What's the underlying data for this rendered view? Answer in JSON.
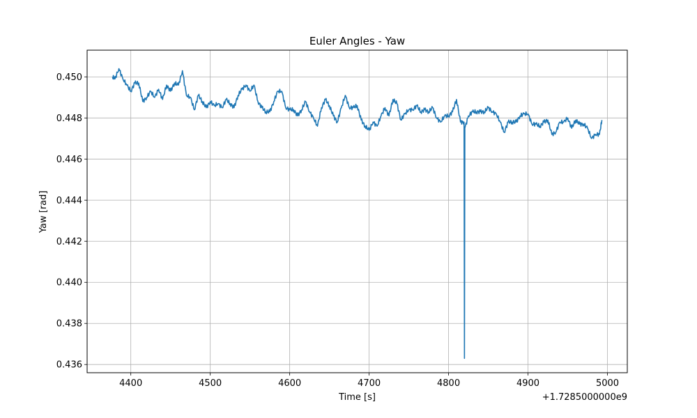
{
  "chart_data": {
    "type": "line",
    "title": "Euler Angles - Yaw",
    "xlabel": "Time [s]",
    "ylabel": "Yaw [rad]",
    "x_offset_label": "+1.7285000000e9",
    "xlim": [
      4345,
      5025
    ],
    "ylim": [
      0.4356,
      0.4513
    ],
    "xticks": [
      4400,
      4500,
      4600,
      4700,
      4800,
      4900,
      5000
    ],
    "xtick_labels": [
      "4400",
      "4500",
      "4600",
      "4700",
      "4800",
      "4900",
      "5000"
    ],
    "yticks": [
      0.436,
      0.438,
      0.44,
      0.442,
      0.444,
      0.446,
      0.448,
      0.45
    ],
    "ytick_labels": [
      "0.436",
      "0.438",
      "0.440",
      "0.442",
      "0.444",
      "0.446",
      "0.448",
      "0.450"
    ],
    "grid": true,
    "line_color": "#1f77b4",
    "series": [
      {
        "x": [
          4377,
          4380,
          4385,
          4390,
          4395,
          4400,
          4405,
          4410,
          4415,
          4420,
          4425,
          4430,
          4435,
          4440,
          4445,
          4450,
          4455,
          4460,
          4465,
          4470,
          4475,
          4480,
          4485,
          4490,
          4495,
          4500,
          4505,
          4510,
          4515,
          4520,
          4525,
          4530,
          4535,
          4540,
          4545,
          4550,
          4555,
          4560,
          4565,
          4570,
          4575,
          4580,
          4585,
          4590,
          4595,
          4600,
          4605,
          4610,
          4615,
          4620,
          4625,
          4630,
          4635,
          4640,
          4645,
          4650,
          4655,
          4660,
          4665,
          4670,
          4675,
          4680,
          4685,
          4690,
          4695,
          4700,
          4705,
          4710,
          4715,
          4720,
          4725,
          4730,
          4735,
          4740,
          4745,
          4750,
          4755,
          4760,
          4765,
          4770,
          4775,
          4780,
          4785,
          4790,
          4795,
          4800,
          4805,
          4810,
          4815,
          4819.5,
          4820,
          4820.5,
          4825,
          4830,
          4835,
          4840,
          4845,
          4850,
          4855,
          4860,
          4865,
          4870,
          4875,
          4880,
          4885,
          4890,
          4895,
          4900,
          4905,
          4910,
          4915,
          4920,
          4925,
          4930,
          4935,
          4940,
          4945,
          4950,
          4955,
          4960,
          4965,
          4970,
          4975,
          4980,
          4985,
          4990,
          4993
        ],
        "values": [
          0.45,
          0.4499,
          0.4504,
          0.4499,
          0.4496,
          0.4493,
          0.4497,
          0.4497,
          0.4488,
          0.449,
          0.4493,
          0.449,
          0.4494,
          0.4489,
          0.4496,
          0.4493,
          0.4497,
          0.4496,
          0.4503,
          0.4491,
          0.449,
          0.4484,
          0.4491,
          0.4488,
          0.4485,
          0.4488,
          0.4486,
          0.4487,
          0.4485,
          0.4489,
          0.4487,
          0.4485,
          0.4491,
          0.4494,
          0.4496,
          0.4493,
          0.4496,
          0.4488,
          0.4485,
          0.4483,
          0.4483,
          0.4488,
          0.4493,
          0.4493,
          0.4485,
          0.4484,
          0.4484,
          0.4481,
          0.4484,
          0.4488,
          0.4483,
          0.448,
          0.4476,
          0.4485,
          0.4489,
          0.4486,
          0.4481,
          0.4478,
          0.4485,
          0.4491,
          0.4485,
          0.4485,
          0.4486,
          0.4479,
          0.4476,
          0.4474,
          0.4478,
          0.4476,
          0.4481,
          0.4485,
          0.4481,
          0.4489,
          0.4487,
          0.4479,
          0.4482,
          0.4484,
          0.4484,
          0.4486,
          0.4483,
          0.4484,
          0.4483,
          0.4485,
          0.448,
          0.4478,
          0.4481,
          0.4481,
          0.4483,
          0.4489,
          0.4478,
          0.4478,
          0.4363,
          0.4475,
          0.4481,
          0.4483,
          0.4483,
          0.4483,
          0.4483,
          0.4485,
          0.4483,
          0.4482,
          0.4478,
          0.4473,
          0.4478,
          0.4478,
          0.4478,
          0.4481,
          0.4482,
          0.4482,
          0.4477,
          0.4477,
          0.4476,
          0.4478,
          0.4479,
          0.4472,
          0.4473,
          0.4478,
          0.4478,
          0.448,
          0.4475,
          0.4479,
          0.4477,
          0.4477,
          0.4475,
          0.447,
          0.4472,
          0.4472,
          0.4479
        ]
      }
    ]
  }
}
